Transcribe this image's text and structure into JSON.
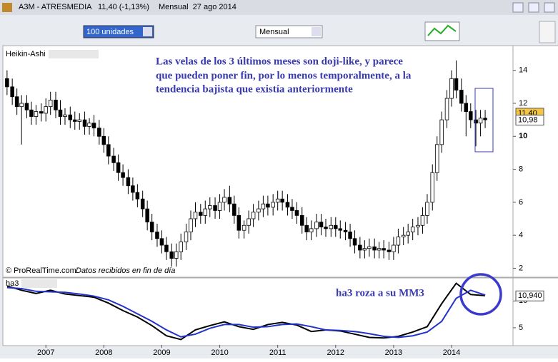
{
  "window": {
    "symbol": "A3M - ATRESMEDIA",
    "quote": "11,40 (-1,13%)",
    "period_date": "Mensual  27 ago 2014",
    "units_select": "100 unidades",
    "period_select": "Mensual",
    "copyright": "© ProRealTime.com",
    "data_note": "Datos recibidos en fin de día"
  },
  "chart_data": [
    {
      "type": "candlestick",
      "panel_label": "Heikin-Ashi",
      "annotation": [
        "Las velas de los 3 últimos meses son doji-like, y parece",
        "que pueden poner fin, por lo menos temporalmente, a la",
        "tendencia bajista que existía anteriormente"
      ],
      "x": [
        2006.33,
        2006.42,
        2006.5,
        2006.58,
        2006.67,
        2006.75,
        2006.83,
        2006.92,
        2007.0,
        2007.08,
        2007.17,
        2007.25,
        2007.33,
        2007.42,
        2007.5,
        2007.58,
        2007.67,
        2007.75,
        2007.83,
        2007.92,
        2008.0,
        2008.08,
        2008.17,
        2008.25,
        2008.33,
        2008.42,
        2008.5,
        2008.58,
        2008.67,
        2008.75,
        2008.83,
        2008.92,
        2009.0,
        2009.08,
        2009.17,
        2009.25,
        2009.33,
        2009.42,
        2009.5,
        2009.58,
        2009.67,
        2009.75,
        2009.83,
        2009.92,
        2010.0,
        2010.08,
        2010.17,
        2010.25,
        2010.33,
        2010.42,
        2010.5,
        2010.58,
        2010.67,
        2010.75,
        2010.83,
        2010.92,
        2011.0,
        2011.08,
        2011.17,
        2011.25,
        2011.33,
        2011.42,
        2011.5,
        2011.58,
        2011.67,
        2011.75,
        2011.83,
        2011.92,
        2012.0,
        2012.08,
        2012.17,
        2012.25,
        2012.33,
        2012.42,
        2012.5,
        2012.58,
        2012.67,
        2012.75,
        2012.83,
        2012.92,
        2013.0,
        2013.08,
        2013.17,
        2013.25,
        2013.33,
        2013.42,
        2013.5,
        2013.58,
        2013.67,
        2013.75,
        2013.83,
        2013.92,
        2014.0,
        2014.08,
        2014.17,
        2014.25,
        2014.33,
        2014.42,
        2014.5,
        2014.58
      ],
      "open": [
        13.5,
        13.0,
        12.4,
        11.8,
        12.0,
        11.6,
        11.2,
        11.5,
        11.4,
        11.8,
        12.2,
        11.6,
        11.2,
        11.3,
        11.0,
        10.9,
        11.0,
        10.6,
        10.8,
        10.5,
        10.0,
        9.5,
        8.8,
        8.4,
        7.8,
        7.5,
        7.0,
        6.6,
        6.2,
        5.6,
        4.8,
        4.2,
        3.8,
        3.4,
        3.0,
        2.6,
        3.0,
        3.6,
        4.2,
        5.0,
        5.4,
        5.2,
        5.6,
        5.8,
        5.5,
        6.0,
        6.3,
        5.9,
        5.2,
        4.3,
        4.6,
        5.0,
        5.4,
        5.6,
        5.9,
        5.7,
        6.0,
        6.2,
        6.0,
        5.7,
        5.5,
        5.2,
        4.6,
        4.2,
        4.4,
        4.8,
        4.5,
        4.4,
        4.6,
        4.4,
        4.3,
        4.2,
        3.8,
        3.4,
        3.1,
        3.2,
        3.3,
        3.1,
        3.2,
        3.1,
        3.0,
        3.4,
        3.9,
        4.0,
        4.2,
        4.5,
        4.6,
        5.2,
        6.0,
        7.8,
        9.5,
        11.0,
        12.3,
        13.5,
        12.8,
        12.0,
        11.5,
        11.0,
        10.8,
        11.1
      ],
      "high": [
        14.0,
        13.5,
        12.9,
        12.5,
        12.5,
        12.1,
        11.9,
        12.0,
        12.3,
        12.7,
        12.7,
        12.2,
        11.7,
        11.8,
        11.5,
        11.4,
        11.5,
        11.1,
        11.3,
        11.0,
        10.5,
        10.0,
        9.3,
        8.9,
        8.3,
        8.0,
        7.5,
        7.1,
        6.7,
        6.1,
        5.3,
        4.7,
        4.3,
        3.9,
        3.5,
        3.5,
        4.1,
        4.7,
        5.5,
        6.0,
        5.9,
        6.1,
        6.3,
        6.3,
        6.5,
        6.8,
        7.0,
        6.4,
        5.7,
        4.9,
        5.5,
        5.9,
        6.1,
        6.4,
        6.4,
        6.5,
        6.7,
        6.7,
        6.5,
        6.2,
        6.0,
        5.7,
        5.1,
        4.9,
        5.3,
        5.3,
        5.0,
        5.1,
        5.1,
        4.9,
        4.8,
        4.7,
        4.3,
        3.9,
        3.7,
        3.8,
        3.8,
        3.6,
        3.7,
        3.6,
        3.9,
        4.4,
        4.5,
        4.7,
        5.0,
        5.1,
        5.7,
        6.5,
        8.3,
        10.0,
        11.5,
        12.8,
        14.0,
        14.6,
        13.5,
        12.5,
        12.0,
        11.6,
        11.6,
        11.6
      ],
      "low": [
        12.5,
        11.9,
        11.3,
        9.5,
        11.1,
        10.7,
        10.7,
        10.9,
        10.9,
        11.3,
        11.1,
        10.7,
        10.7,
        10.5,
        10.4,
        10.4,
        10.1,
        10.1,
        10.0,
        9.5,
        9.0,
        8.3,
        7.9,
        7.3,
        7.0,
        6.5,
        6.1,
        5.7,
        5.1,
        4.3,
        3.7,
        3.3,
        2.9,
        2.5,
        2.1,
        2.1,
        2.5,
        3.1,
        3.7,
        4.5,
        4.7,
        4.7,
        5.1,
        5.0,
        5.0,
        5.5,
        5.4,
        4.7,
        3.8,
        3.8,
        4.1,
        4.5,
        4.9,
        5.1,
        5.2,
        5.2,
        5.5,
        5.5,
        5.2,
        5.0,
        4.7,
        4.1,
        3.7,
        3.7,
        3.9,
        4.0,
        3.9,
        3.9,
        3.9,
        3.8,
        3.7,
        3.3,
        2.9,
        2.6,
        2.6,
        2.7,
        2.6,
        2.6,
        2.6,
        2.5,
        2.5,
        2.9,
        3.4,
        3.5,
        3.7,
        4.0,
        4.1,
        4.7,
        5.5,
        7.3,
        9.0,
        10.5,
        11.8,
        12.3,
        11.5,
        10.0,
        10.5,
        9.4,
        10.0,
        10.5
      ],
      "close": [
        13.0,
        12.4,
        11.8,
        12.0,
        11.6,
        11.2,
        11.5,
        11.4,
        11.8,
        12.2,
        11.6,
        11.2,
        11.3,
        11.0,
        10.9,
        11.0,
        10.6,
        10.8,
        10.5,
        10.0,
        9.5,
        8.8,
        8.4,
        7.8,
        7.5,
        7.0,
        6.6,
        6.2,
        5.6,
        4.8,
        4.2,
        3.8,
        3.4,
        3.0,
        2.6,
        3.0,
        3.6,
        4.2,
        5.0,
        5.4,
        5.2,
        5.6,
        5.8,
        5.5,
        6.0,
        6.3,
        5.9,
        5.2,
        4.3,
        4.6,
        5.0,
        5.4,
        5.6,
        5.9,
        5.7,
        6.0,
        6.2,
        6.0,
        5.7,
        5.5,
        5.2,
        4.6,
        4.2,
        4.4,
        4.8,
        4.5,
        4.4,
        4.6,
        4.4,
        4.3,
        4.2,
        3.8,
        3.4,
        3.1,
        3.2,
        3.3,
        3.1,
        3.2,
        3.1,
        3.0,
        3.4,
        3.9,
        4.0,
        4.2,
        4.5,
        4.6,
        5.2,
        6.0,
        7.8,
        9.5,
        11.0,
        12.3,
        13.5,
        12.8,
        12.0,
        11.5,
        11.0,
        10.8,
        11.1,
        11.0
      ],
      "up_color": "#ffffff",
      "down_color": "#000000",
      "xlim": [
        2006.27,
        2015.06
      ],
      "ylim": [
        1.5,
        15.5
      ],
      "yticks": [
        2,
        4,
        6,
        8,
        10,
        12,
        14
      ],
      "price_labels": [
        {
          "value": 11.4,
          "label": "11,40",
          "color": "#f5c542"
        },
        {
          "value": 10.98,
          "label": "10,98",
          "color": "#ffffff"
        }
      ]
    },
    {
      "type": "line",
      "annotation": "ha3 roza a su MM3",
      "x": [
        2006.33,
        2006.58,
        2006.83,
        2007.08,
        2007.33,
        2007.58,
        2007.83,
        2008.08,
        2008.33,
        2008.58,
        2008.83,
        2009.08,
        2009.33,
        2009.58,
        2009.83,
        2010.08,
        2010.33,
        2010.58,
        2010.83,
        2011.08,
        2011.33,
        2011.58,
        2011.83,
        2012.08,
        2012.33,
        2012.58,
        2012.83,
        2013.08,
        2013.33,
        2013.58,
        2013.83,
        2014.08,
        2014.33,
        2014.58
      ],
      "series": [
        {
          "name": "ha3",
          "color": "#000000",
          "values": [
            12.8,
            12.0,
            11.4,
            12.0,
            11.3,
            11.0,
            10.7,
            9.6,
            8.2,
            7.0,
            5.4,
            3.5,
            2.8,
            4.6,
            5.4,
            6.1,
            5.2,
            4.7,
            5.6,
            6.0,
            5.5,
            4.3,
            4.6,
            4.4,
            3.8,
            3.2,
            3.1,
            3.4,
            4.2,
            5.2,
            9.5,
            13.3,
            11.2,
            11.0
          ]
        },
        {
          "color": "#2233cc",
          "values": [
            12.5,
            12.3,
            11.8,
            11.7,
            11.6,
            11.3,
            10.9,
            10.2,
            9.0,
            7.6,
            6.2,
            4.6,
            3.3,
            3.8,
            4.9,
            5.6,
            5.6,
            5.1,
            5.2,
            5.6,
            5.7,
            5.2,
            4.6,
            4.5,
            4.3,
            3.9,
            3.4,
            3.2,
            3.5,
            4.2,
            6.2,
            10.5,
            12.0,
            11.1
          ]
        }
      ],
      "xlim": [
        2006.27,
        2015.06
      ],
      "xticks": [
        2007,
        2008,
        2009,
        2010,
        2011,
        2012,
        2013,
        2014
      ],
      "ylim": [
        1.8,
        14.3
      ],
      "yticks": [
        5,
        10
      ],
      "price_labels": [
        {
          "value": 10.94,
          "label": "10,940",
          "color": "#ffffff"
        }
      ]
    }
  ]
}
